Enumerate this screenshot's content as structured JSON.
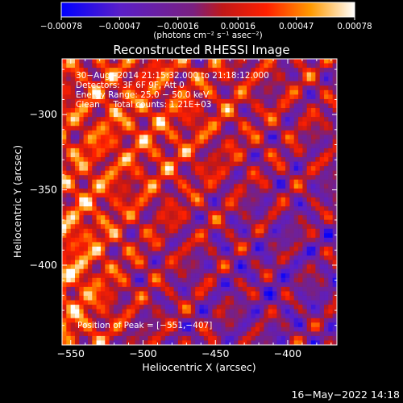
{
  "chart_data": {
    "type": "heatmap",
    "title": "Reconstructed RHESSI Image",
    "xlabel": "Heliocentric X (arcsec)",
    "ylabel": "Heliocentric Y (arcsec)",
    "xlim": [
      -556,
      -366
    ],
    "ylim": [
      -453,
      -263
    ],
    "x_ticks": [
      -550,
      -500,
      -450,
      -400
    ],
    "y_ticks": [
      -300,
      -350,
      -400
    ],
    "x_tick_labels": [
      "−550",
      "−500",
      "−450",
      "−400"
    ],
    "y_tick_labels": [
      "−300",
      "−350",
      "−400"
    ],
    "colorbar": {
      "ticks": [
        -0.00078,
        -0.00047,
        -0.00016,
        0.00016,
        0.00047,
        0.00078
      ],
      "tick_labels": [
        "−0.00078",
        "−0.00047",
        "−0.00016",
        "0.00016",
        "0.00047",
        "0.00078"
      ],
      "unit_label": "(photons cm⁻² s⁻¹ asec⁻²)",
      "range": [
        -0.00078,
        0.00078
      ]
    },
    "annotations": [
      "30−Aug−2014 21:15:32.000 to 21:18:12.000",
      "Detectors: 3F 6F 9F, Att 0",
      "Energy Range: 25.0 − 50.0 keV",
      "Clean     Total counts: 1.21E+03"
    ],
    "peak_label": "Position of Peak = [−551,−407]",
    "peak": [
      -551,
      -407
    ],
    "grid": false
  },
  "footer": {
    "timestamp": "16−May−2022 14:18"
  }
}
